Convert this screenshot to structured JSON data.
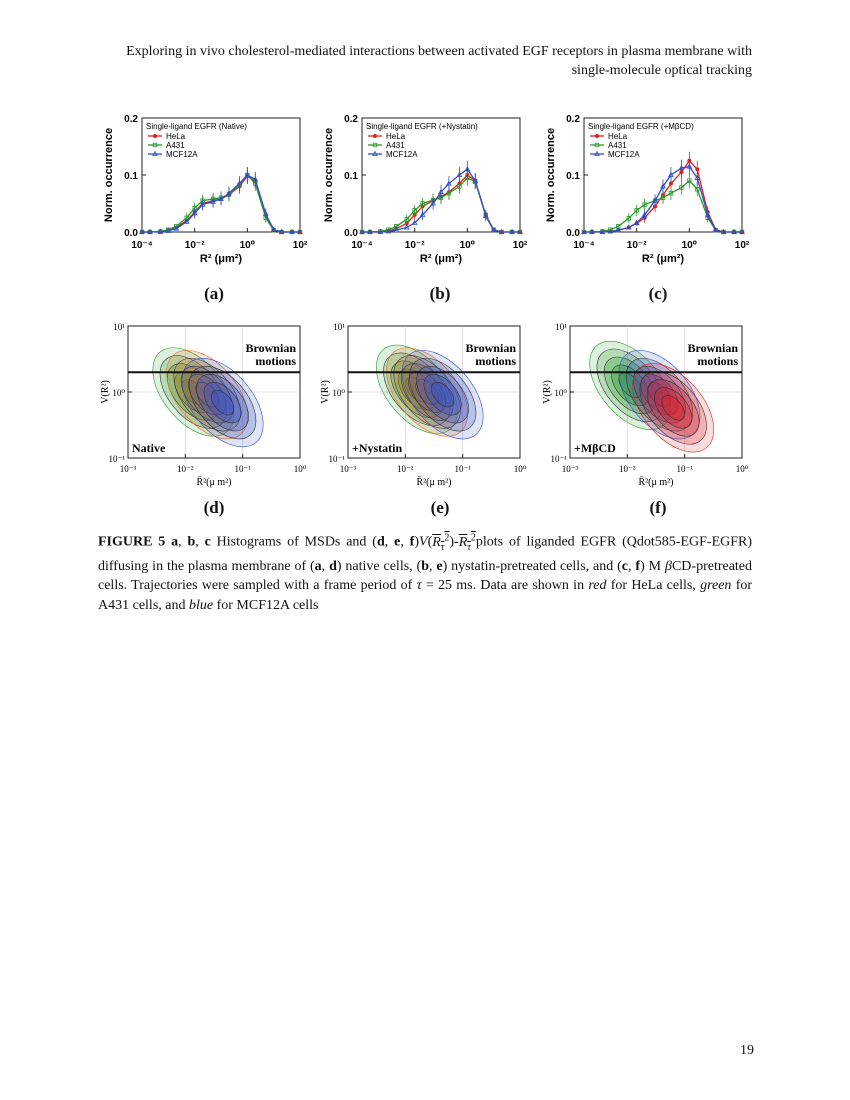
{
  "header": {
    "line1": "Exploring in vivo cholesterol-mediated interactions between activated EGF receptors in plasma membrane with",
    "line2": "single-molecule optical tracking"
  },
  "panels_top": [
    {
      "id": "a",
      "legend_title": "Single-ligand EGFR (Native)",
      "label": "(a)"
    },
    {
      "id": "b",
      "legend_title": "Single-ligand EGFR (+Nystatin)",
      "label": "(b)"
    },
    {
      "id": "c",
      "legend_title": "Single-ligand EGFR (+MβCD)",
      "label": "(c)"
    }
  ],
  "hist_axes": {
    "ylabel": "Norm. occurrence",
    "yticks": [
      "0.0",
      "0.1",
      "0.2"
    ],
    "xticks": [
      "10⁻⁴",
      "10⁻²",
      "10⁰",
      "10²"
    ],
    "xlabel": "R² (μm²)",
    "legend": [
      "HeLa",
      "A431",
      "MCF12A"
    ]
  },
  "panels_bottom": [
    {
      "id": "d",
      "corner": "Native",
      "label": "(d)"
    },
    {
      "id": "e",
      "corner": "+Nystatin",
      "label": "(e)"
    },
    {
      "id": "f",
      "corner": "+MβCD",
      "label": "(f)"
    }
  ],
  "density_axes": {
    "ylabel": "V(R̄²)",
    "yticks": [
      "10¹",
      "10⁰",
      "10⁻¹"
    ],
    "xticks": [
      "10⁻³",
      "10⁻²",
      "10⁻¹",
      "10⁰"
    ],
    "xlabel": "R̄²(μ m²)",
    "brownian": [
      "Brownian",
      "motions"
    ]
  },
  "colors": {
    "hela": "#e02020",
    "a431": "#2a9a2a",
    "mcf12a": "#2f4fc8"
  },
  "chart_data": [
    {
      "type": "line",
      "title": "Single-ligand EGFR (Native)",
      "xlabel": "R² (μm²)",
      "ylabel": "Norm. occurrence",
      "ylim": [
        0,
        0.2
      ],
      "xscale": "log",
      "xlim": [
        0.0001,
        100
      ],
      "x": [
        0.0001,
        0.0002,
        0.0005,
        0.001,
        0.002,
        0.005,
        0.01,
        0.02,
        0.05,
        0.1,
        0.2,
        0.5,
        1,
        2,
        5,
        10,
        20,
        50,
        100
      ],
      "series": [
        {
          "name": "HeLa",
          "values": [
            0,
            0,
            0.001,
            0.003,
            0.008,
            0.02,
            0.035,
            0.05,
            0.055,
            0.058,
            0.065,
            0.08,
            0.098,
            0.09,
            0.03,
            0.004,
            0,
            0,
            0
          ]
        },
        {
          "name": "A431",
          "values": [
            0,
            0,
            0.001,
            0.004,
            0.01,
            0.025,
            0.042,
            0.055,
            0.058,
            0.06,
            0.066,
            0.082,
            0.1,
            0.085,
            0.025,
            0.003,
            0,
            0,
            0
          ]
        },
        {
          "name": "MCF12A",
          "values": [
            0,
            0,
            0,
            0.002,
            0.006,
            0.018,
            0.033,
            0.048,
            0.053,
            0.058,
            0.068,
            0.085,
            0.1,
            0.092,
            0.032,
            0.004,
            0,
            0,
            0
          ]
        }
      ]
    },
    {
      "type": "line",
      "title": "Single-ligand EGFR (+Nystatin)",
      "xlabel": "R² (μm²)",
      "ylabel": "Norm. occurrence",
      "ylim": [
        0,
        0.2
      ],
      "xscale": "log",
      "xlim": [
        0.0001,
        100
      ],
      "x": [
        0.0001,
        0.0002,
        0.0005,
        0.001,
        0.002,
        0.005,
        0.01,
        0.02,
        0.05,
        0.1,
        0.2,
        0.5,
        1,
        2,
        5,
        10,
        20,
        50,
        100
      ],
      "series": [
        {
          "name": "HeLa",
          "values": [
            0,
            0,
            0,
            0.002,
            0.006,
            0.015,
            0.03,
            0.045,
            0.055,
            0.062,
            0.07,
            0.085,
            0.1,
            0.09,
            0.03,
            0.004,
            0,
            0,
            0
          ]
        },
        {
          "name": "A431",
          "values": [
            0,
            0,
            0.001,
            0.004,
            0.01,
            0.022,
            0.038,
            0.05,
            0.056,
            0.06,
            0.068,
            0.08,
            0.095,
            0.088,
            0.03,
            0.004,
            0,
            0,
            0
          ]
        },
        {
          "name": "MCF12A",
          "values": [
            0,
            0,
            0,
            0.001,
            0.003,
            0.008,
            0.016,
            0.03,
            0.05,
            0.07,
            0.085,
            0.1,
            0.11,
            0.09,
            0.028,
            0.003,
            0,
            0,
            0
          ]
        }
      ]
    },
    {
      "type": "line",
      "title": "Single-ligand EGFR (+MβCD)",
      "xlabel": "R² (μm²)",
      "ylabel": "Norm. occurrence",
      "ylim": [
        0,
        0.2
      ],
      "xscale": "log",
      "xlim": [
        0.0001,
        100
      ],
      "x": [
        0.0001,
        0.0002,
        0.0005,
        0.001,
        0.002,
        0.005,
        0.01,
        0.02,
        0.05,
        0.1,
        0.2,
        0.5,
        1,
        2,
        5,
        10,
        20,
        50,
        100
      ],
      "series": [
        {
          "name": "HeLa",
          "values": [
            0,
            0,
            0,
            0.001,
            0.003,
            0.008,
            0.015,
            0.025,
            0.045,
            0.065,
            0.085,
            0.105,
            0.125,
            0.11,
            0.035,
            0.004,
            0,
            0,
            0
          ]
        },
        {
          "name": "A431",
          "values": [
            0,
            0,
            0.001,
            0.004,
            0.01,
            0.024,
            0.038,
            0.048,
            0.055,
            0.06,
            0.068,
            0.078,
            0.09,
            0.075,
            0.025,
            0.003,
            0,
            0,
            0
          ]
        },
        {
          "name": "MCF12A",
          "values": [
            0,
            0,
            0,
            0.001,
            0.003,
            0.008,
            0.016,
            0.03,
            0.055,
            0.08,
            0.1,
            0.112,
            0.115,
            0.095,
            0.03,
            0.003,
            0,
            0,
            0
          ]
        }
      ]
    }
  ],
  "caption": {
    "fig": "FIGURE 5",
    "p1": " a",
    "p1b": ", ",
    "p2": "b",
    "p2b": ", ",
    "p3": "c",
    "t1": " Histograms of MSDs and (",
    "d": "d",
    "e": "e",
    "f": "f",
    "t2": ")",
    "t3": "plots of liganded EGFR (Qdot585-EGF-EGFR) diffusing in the plasma membrane of (",
    "t4": ") native cells, (",
    "t5": ") nystatin-pretreated cells, and (",
    "t6": ") M ",
    "t7": "CD-pretreated cells. Trajectories were sampled with a frame period of ",
    "t8": " = 25 ms. Data are shown in ",
    "red": "red",
    "t9": " for HeLa cells, ",
    "green": "green",
    "t10": " for A431 cells, and ",
    "blue": "blue",
    "t11": " for MCF12A cells"
  },
  "page_number": "19"
}
